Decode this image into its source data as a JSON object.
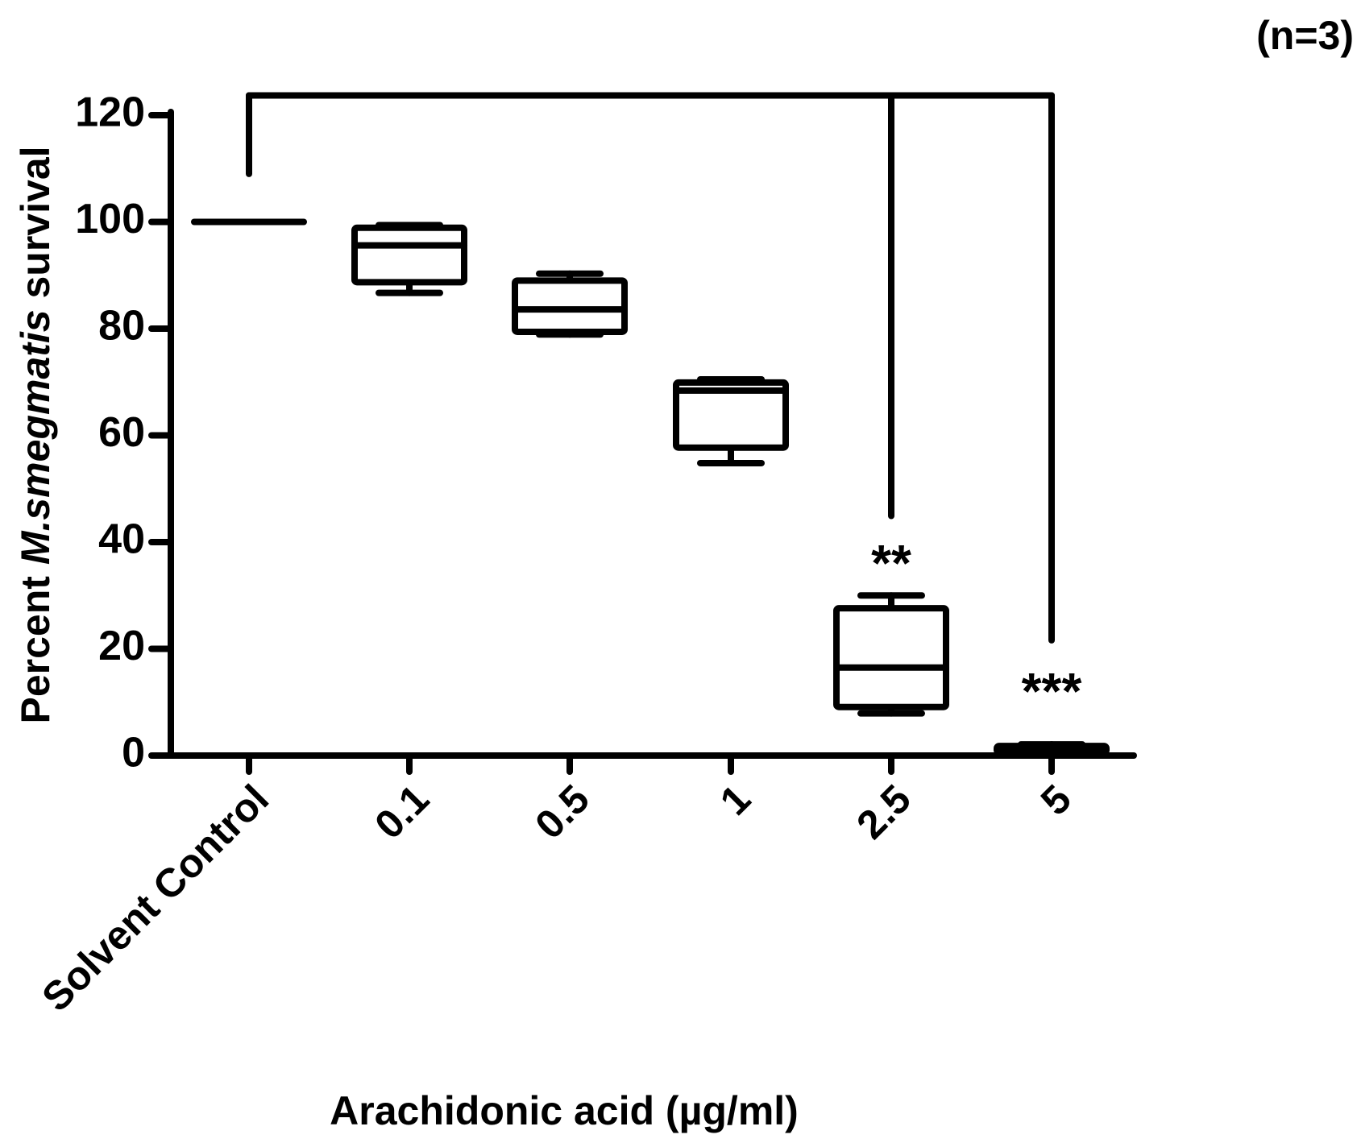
{
  "chart_data": {
    "type": "box",
    "note": "(n=3)",
    "y_label": {
      "prefix": "Percent",
      "species": "M.smegmatis",
      "suffix": "survival"
    },
    "x_label": "Arachidonic acid (µg/ml)",
    "categories": [
      "Solvent Control",
      "0.1",
      "0.5",
      "1",
      "2.5",
      "5"
    ],
    "series": [
      {
        "min": [
          100,
          86.7,
          78.9,
          54.8,
          7.9,
          0.3
        ],
        "q1": [
          100,
          88.7,
          79.4,
          57.7,
          9.1,
          0.6
        ],
        "median": [
          100,
          95.6,
          83.6,
          68.4,
          16.5,
          1.1
        ],
        "q3": [
          100,
          98.9,
          89,
          69.9,
          27.6,
          1.8
        ],
        "max": [
          100,
          99.4,
          90.3,
          70.5,
          30,
          2.1
        ],
        "color": "#000000"
      }
    ],
    "ylim": [
      0,
      120
    ],
    "yticks": [
      0,
      20,
      40,
      60,
      80,
      100,
      120
    ],
    "significance": {
      "bracket_y": 123.7,
      "start_category": "Solvent Control",
      "start_end": 109,
      "marks": [
        {
          "category": "2.5",
          "label": "**",
          "line_end": 44.9,
          "label_y": 38
        },
        {
          "category": "5",
          "label": "***",
          "line_end": 21.6,
          "label_y": 14
        }
      ]
    }
  }
}
